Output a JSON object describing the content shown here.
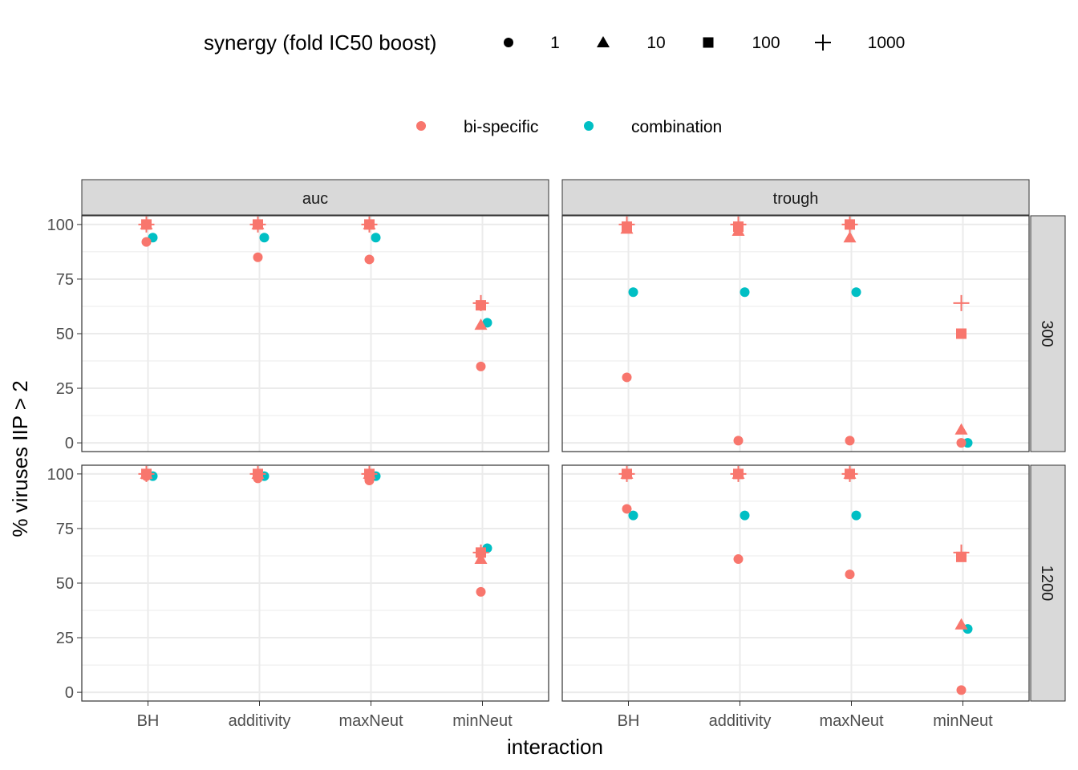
{
  "chart_data": {
    "type": "scatter",
    "xlabel": "interaction",
    "ylabel": "% viruses IIP > 2",
    "categories": [
      "BH",
      "additivity",
      "maxNeut",
      "minNeut"
    ],
    "ylim": [
      -4,
      104
    ],
    "yticks": [
      0,
      25,
      50,
      75,
      100
    ],
    "facet_columns": [
      "auc",
      "trough"
    ],
    "facet_rows": [
      "300",
      "1200"
    ],
    "grid": true,
    "legend_position": "top",
    "legends": {
      "shape": {
        "title": "synergy (fold IC50 boost)",
        "entries": [
          {
            "label": "1",
            "shape": "circle"
          },
          {
            "label": "10",
            "shape": "triangle"
          },
          {
            "label": "100",
            "shape": "square"
          },
          {
            "label": "1000",
            "shape": "plus"
          }
        ]
      },
      "color": {
        "title": "",
        "entries": [
          {
            "label": "bi-specific",
            "color": "#F8766D"
          },
          {
            "label": "combination",
            "color": "#00BFC4"
          }
        ]
      }
    },
    "panels": [
      {
        "col": "auc",
        "row": "300",
        "series": [
          {
            "name": "combination",
            "points": [
              {
                "x": "BH",
                "s": "1",
                "y": 94
              },
              {
                "x": "additivity",
                "s": "1",
                "y": 94
              },
              {
                "x": "maxNeut",
                "s": "1",
                "y": 94
              },
              {
                "x": "minNeut",
                "s": "1",
                "y": 55
              }
            ]
          },
          {
            "name": "bi-specific",
            "points": [
              {
                "x": "BH",
                "s": "1",
                "y": 92
              },
              {
                "x": "BH",
                "s": "10",
                "y": 100
              },
              {
                "x": "BH",
                "s": "100",
                "y": 100
              },
              {
                "x": "BH",
                "s": "1000",
                "y": 100
              },
              {
                "x": "additivity",
                "s": "1",
                "y": 85
              },
              {
                "x": "additivity",
                "s": "10",
                "y": 100
              },
              {
                "x": "additivity",
                "s": "100",
                "y": 100
              },
              {
                "x": "additivity",
                "s": "1000",
                "y": 100
              },
              {
                "x": "maxNeut",
                "s": "1",
                "y": 84
              },
              {
                "x": "maxNeut",
                "s": "10",
                "y": 100
              },
              {
                "x": "maxNeut",
                "s": "100",
                "y": 100
              },
              {
                "x": "maxNeut",
                "s": "1000",
                "y": 100
              },
              {
                "x": "minNeut",
                "s": "1",
                "y": 35
              },
              {
                "x": "minNeut",
                "s": "10",
                "y": 54
              },
              {
                "x": "minNeut",
                "s": "100",
                "y": 63
              },
              {
                "x": "minNeut",
                "s": "1000",
                "y": 64
              }
            ]
          }
        ]
      },
      {
        "col": "trough",
        "row": "300",
        "series": [
          {
            "name": "combination",
            "points": [
              {
                "x": "BH",
                "s": "1",
                "y": 69
              },
              {
                "x": "additivity",
                "s": "1",
                "y": 69
              },
              {
                "x": "maxNeut",
                "s": "1",
                "y": 69
              },
              {
                "x": "minNeut",
                "s": "1",
                "y": 0
              }
            ]
          },
          {
            "name": "bi-specific",
            "points": [
              {
                "x": "BH",
                "s": "1",
                "y": 30
              },
              {
                "x": "BH",
                "s": "10",
                "y": 98
              },
              {
                "x": "BH",
                "s": "100",
                "y": 99
              },
              {
                "x": "BH",
                "s": "1000",
                "y": 100
              },
              {
                "x": "additivity",
                "s": "1",
                "y": 1
              },
              {
                "x": "additivity",
                "s": "10",
                "y": 97
              },
              {
                "x": "additivity",
                "s": "100",
                "y": 99
              },
              {
                "x": "additivity",
                "s": "1000",
                "y": 100
              },
              {
                "x": "maxNeut",
                "s": "1",
                "y": 1
              },
              {
                "x": "maxNeut",
                "s": "10",
                "y": 94
              },
              {
                "x": "maxNeut",
                "s": "100",
                "y": 100
              },
              {
                "x": "maxNeut",
                "s": "1000",
                "y": 100
              },
              {
                "x": "minNeut",
                "s": "1",
                "y": 0
              },
              {
                "x": "minNeut",
                "s": "10",
                "y": 6
              },
              {
                "x": "minNeut",
                "s": "100",
                "y": 50
              },
              {
                "x": "minNeut",
                "s": "1000",
                "y": 64
              }
            ]
          }
        ]
      },
      {
        "col": "auc",
        "row": "1200",
        "series": [
          {
            "name": "combination",
            "points": [
              {
                "x": "BH",
                "s": "1",
                "y": 99
              },
              {
                "x": "additivity",
                "s": "1",
                "y": 99
              },
              {
                "x": "maxNeut",
                "s": "1",
                "y": 99
              },
              {
                "x": "minNeut",
                "s": "1",
                "y": 66
              }
            ]
          },
          {
            "name": "bi-specific",
            "points": [
              {
                "x": "BH",
                "s": "1",
                "y": 99
              },
              {
                "x": "BH",
                "s": "10",
                "y": 100
              },
              {
                "x": "BH",
                "s": "100",
                "y": 100
              },
              {
                "x": "BH",
                "s": "1000",
                "y": 100
              },
              {
                "x": "additivity",
                "s": "1",
                "y": 98
              },
              {
                "x": "additivity",
                "s": "10",
                "y": 100
              },
              {
                "x": "additivity",
                "s": "100",
                "y": 100
              },
              {
                "x": "additivity",
                "s": "1000",
                "y": 100
              },
              {
                "x": "maxNeut",
                "s": "1",
                "y": 97
              },
              {
                "x": "maxNeut",
                "s": "10",
                "y": 100
              },
              {
                "x": "maxNeut",
                "s": "100",
                "y": 100
              },
              {
                "x": "maxNeut",
                "s": "1000",
                "y": 100
              },
              {
                "x": "minNeut",
                "s": "1",
                "y": 46
              },
              {
                "x": "minNeut",
                "s": "10",
                "y": 61
              },
              {
                "x": "minNeut",
                "s": "100",
                "y": 64
              },
              {
                "x": "minNeut",
                "s": "1000",
                "y": 64
              }
            ]
          }
        ]
      },
      {
        "col": "trough",
        "row": "1200",
        "series": [
          {
            "name": "combination",
            "points": [
              {
                "x": "BH",
                "s": "1",
                "y": 81
              },
              {
                "x": "additivity",
                "s": "1",
                "y": 81
              },
              {
                "x": "maxNeut",
                "s": "1",
                "y": 81
              },
              {
                "x": "minNeut",
                "s": "1",
                "y": 29
              }
            ]
          },
          {
            "name": "bi-specific",
            "points": [
              {
                "x": "BH",
                "s": "1",
                "y": 84
              },
              {
                "x": "BH",
                "s": "10",
                "y": 100
              },
              {
                "x": "BH",
                "s": "100",
                "y": 100
              },
              {
                "x": "BH",
                "s": "1000",
                "y": 100
              },
              {
                "x": "additivity",
                "s": "1",
                "y": 61
              },
              {
                "x": "additivity",
                "s": "10",
                "y": 100
              },
              {
                "x": "additivity",
                "s": "100",
                "y": 100
              },
              {
                "x": "additivity",
                "s": "1000",
                "y": 100
              },
              {
                "x": "maxNeut",
                "s": "1",
                "y": 54
              },
              {
                "x": "maxNeut",
                "s": "10",
                "y": 100
              },
              {
                "x": "maxNeut",
                "s": "100",
                "y": 100
              },
              {
                "x": "maxNeut",
                "s": "1000",
                "y": 100
              },
              {
                "x": "minNeut",
                "s": "1",
                "y": 1
              },
              {
                "x": "minNeut",
                "s": "10",
                "y": 31
              },
              {
                "x": "minNeut",
                "s": "100",
                "y": 62
              },
              {
                "x": "minNeut",
                "s": "1000",
                "y": 64
              }
            ]
          }
        ]
      }
    ]
  }
}
